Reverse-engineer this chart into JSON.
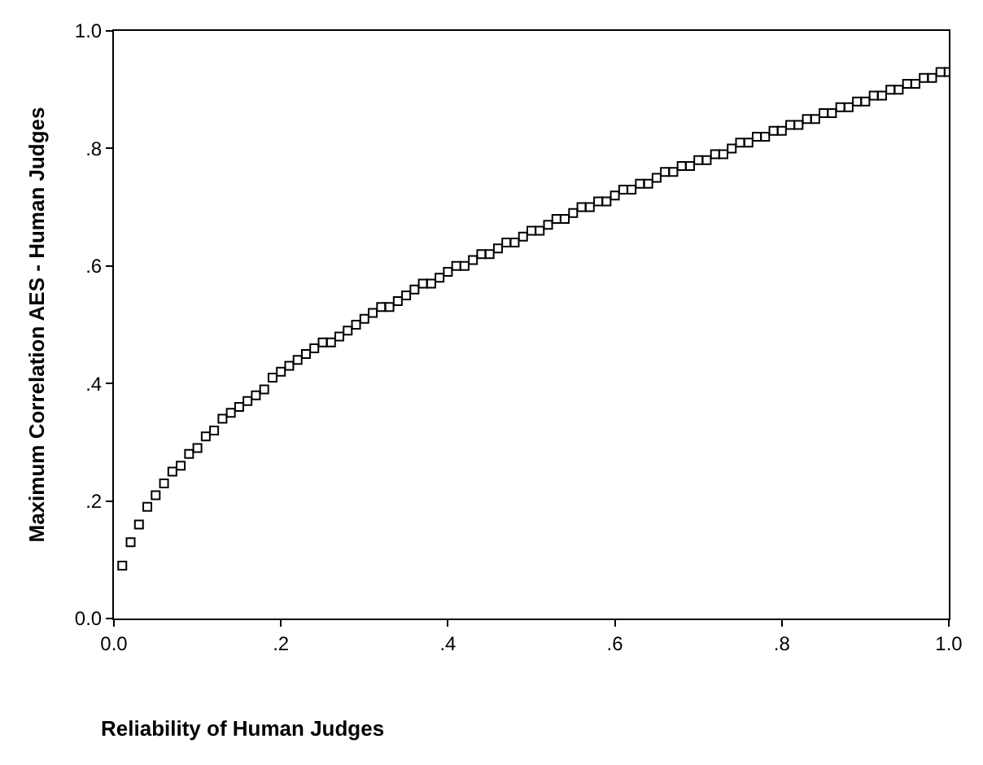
{
  "chart_data": {
    "type": "scatter",
    "xlabel": "Reliability of Human Judges",
    "ylabel": "Maximum Correlation AES - Human Judges",
    "x": [
      0.01,
      0.02,
      0.03,
      0.04,
      0.05,
      0.06,
      0.07,
      0.08,
      0.09,
      0.1,
      0.11,
      0.12,
      0.13,
      0.14,
      0.15,
      0.16,
      0.17,
      0.18,
      0.19,
      0.2,
      0.21,
      0.22,
      0.23,
      0.24,
      0.25,
      0.26,
      0.27,
      0.28,
      0.29,
      0.3,
      0.31,
      0.32,
      0.33,
      0.34,
      0.35,
      0.36,
      0.37,
      0.38,
      0.39,
      0.4,
      0.41,
      0.42,
      0.43,
      0.44,
      0.45,
      0.46,
      0.47,
      0.48,
      0.49,
      0.5,
      0.51,
      0.52,
      0.53,
      0.54,
      0.55,
      0.56,
      0.57,
      0.58,
      0.59,
      0.6,
      0.61,
      0.62,
      0.63,
      0.64,
      0.65,
      0.66,
      0.67,
      0.68,
      0.69,
      0.7,
      0.71,
      0.72,
      0.73,
      0.74,
      0.75,
      0.76,
      0.77,
      0.78,
      0.79,
      0.8,
      0.81,
      0.82,
      0.83,
      0.84,
      0.85,
      0.86,
      0.87,
      0.88,
      0.89,
      0.9,
      0.91,
      0.92,
      0.93,
      0.94,
      0.95,
      0.96,
      0.97,
      0.98,
      0.99,
      1.0
    ],
    "series": [
      {
        "color": "#000000",
        "values": [
          0.09,
          0.13,
          0.16,
          0.19,
          0.21,
          0.23,
          0.25,
          0.26,
          0.28,
          0.29,
          0.31,
          0.32,
          0.34,
          0.35,
          0.36,
          0.37,
          0.38,
          0.39,
          0.41,
          0.42,
          0.43,
          0.44,
          0.45,
          0.46,
          0.47,
          0.47,
          0.48,
          0.49,
          0.5,
          0.51,
          0.52,
          0.53,
          0.53,
          0.54,
          0.55,
          0.56,
          0.57,
          0.57,
          0.58,
          0.59,
          0.6,
          0.6,
          0.61,
          0.62,
          0.62,
          0.63,
          0.64,
          0.64,
          0.65,
          0.66,
          0.66,
          0.67,
          0.68,
          0.68,
          0.69,
          0.7,
          0.7,
          0.71,
          0.71,
          0.72,
          0.73,
          0.73,
          0.74,
          0.74,
          0.75,
          0.76,
          0.76,
          0.77,
          0.77,
          0.78,
          0.78,
          0.79,
          0.79,
          0.8,
          0.81,
          0.81,
          0.82,
          0.82,
          0.83,
          0.83,
          0.84,
          0.84,
          0.85,
          0.85,
          0.86,
          0.86,
          0.87,
          0.87,
          0.88,
          0.88,
          0.89,
          0.89,
          0.9,
          0.9,
          0.91,
          0.91,
          0.92,
          0.92,
          0.93,
          0.93
        ]
      }
    ],
    "xlim": [
      0,
      1
    ],
    "ylim": [
      0,
      1
    ],
    "xticks": [
      {
        "value": 0,
        "label": "0.0"
      },
      {
        "value": 0.2,
        "label": ".2"
      },
      {
        "value": 0.4,
        "label": ".4"
      },
      {
        "value": 0.6,
        "label": ".6"
      },
      {
        "value": 0.8,
        "label": ".8"
      },
      {
        "value": 1,
        "label": "1.0"
      }
    ],
    "yticks": [
      {
        "value": 0,
        "label": "0.0"
      },
      {
        "value": 0.2,
        "label": ".2"
      },
      {
        "value": 0.4,
        "label": ".4"
      },
      {
        "value": 0.6,
        "label": ".6"
      },
      {
        "value": 0.8,
        "label": ".8"
      },
      {
        "value": 1,
        "label": "1.0"
      }
    ],
    "marker": "square"
  }
}
